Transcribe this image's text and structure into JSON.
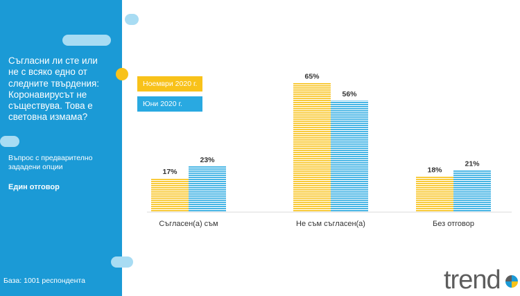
{
  "sidebar": {
    "question": "Съгласни ли сте или не с всяко едно от следните твърдения: Коронавирусът не съществува. Това е световна измама?",
    "question_type": "Въпрос с предварително зададени опции",
    "answer_mode": "Един отговор",
    "base": "База: 1001 респондента"
  },
  "logo": {
    "text": "trend"
  },
  "colors": {
    "sidebar": "#1b9ad6",
    "series_1": "#f8c21a",
    "series_2": "#29a9e1"
  },
  "chart_data": {
    "type": "bar",
    "categories": [
      "Съгласен(а) съм",
      "Не съм съгласен(а)",
      "Без отговор"
    ],
    "series": [
      {
        "name": "Ноември 2020 г.",
        "values": [
          17,
          65,
          18
        ],
        "labels": [
          "17%",
          "65%",
          "18%"
        ]
      },
      {
        "name": "Юни 2020 г.",
        "values": [
          23,
          56,
          21
        ],
        "labels": [
          "23%",
          "56%",
          "21%"
        ]
      }
    ],
    "ylim": [
      0,
      100
    ],
    "legend": "top-left",
    "grid": false
  }
}
